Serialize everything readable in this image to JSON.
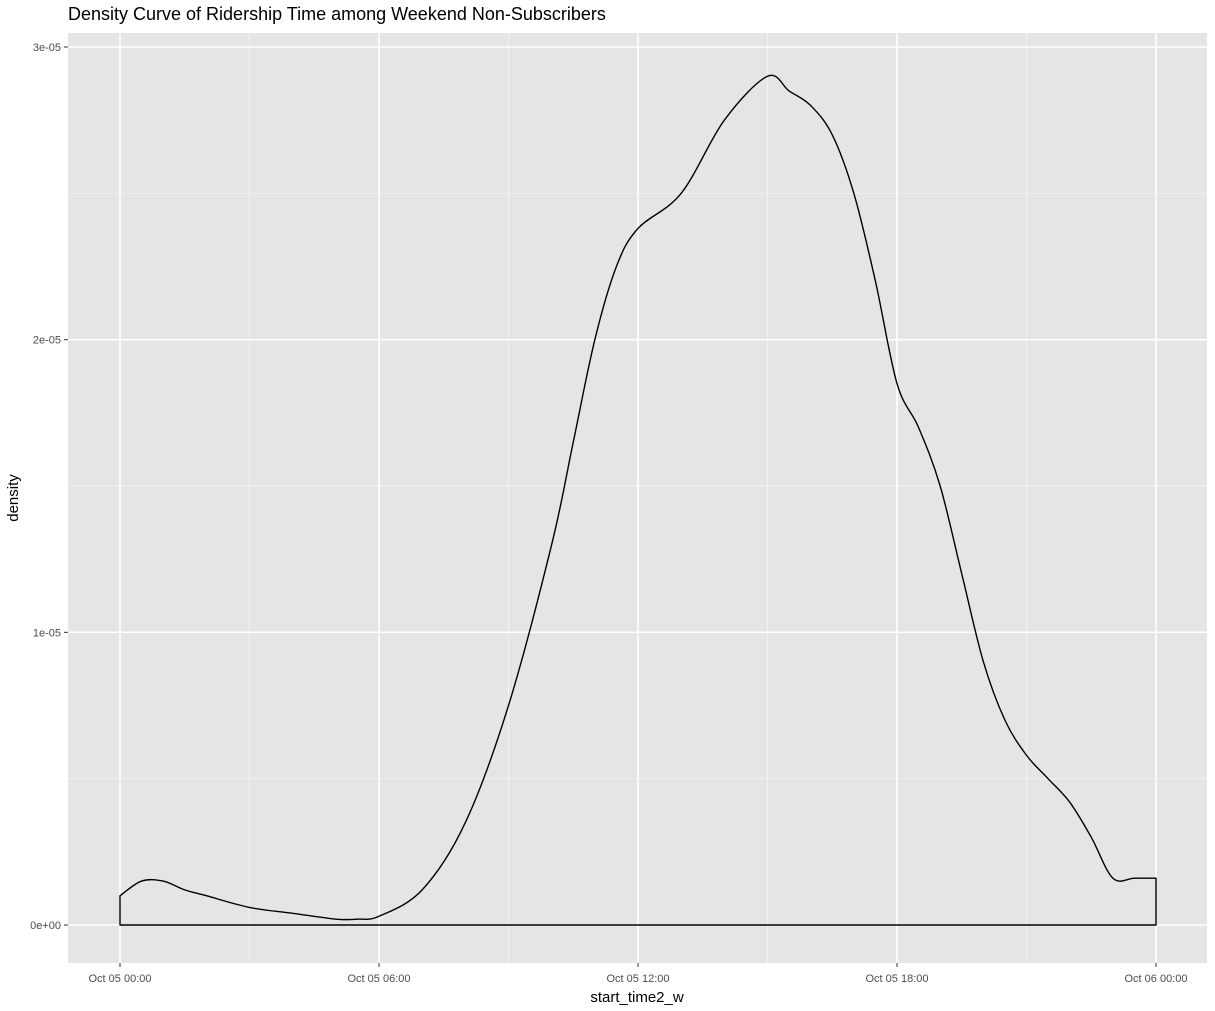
{
  "chart_data": {
    "type": "area",
    "title": "Density Curve of Ridership Time among Weekend Non-Subscribers",
    "xlabel": "start_time2_w",
    "ylabel": "density",
    "x_unit": "datetime",
    "xlim": [
      "Oct 05 00:00",
      "Oct 06 00:00"
    ],
    "ylim": [
      0,
      3e-05
    ],
    "x_ticks": [
      "Oct 05 00:00",
      "Oct 05 06:00",
      "Oct 05 12:00",
      "Oct 05 18:00",
      "Oct 06 00:00"
    ],
    "y_ticks": [
      "0e+00",
      "1e-05",
      "2e-05",
      "3e-05"
    ],
    "grid": true,
    "legend": "none",
    "series": [
      {
        "x": [
          "Oct 05 00:00",
          "Oct 05 00:30",
          "Oct 05 01:00",
          "Oct 05 01:30",
          "Oct 05 02:00",
          "Oct 05 03:00",
          "Oct 05 04:00",
          "Oct 05 05:00",
          "Oct 05 05:30",
          "Oct 05 06:00",
          "Oct 05 07:00",
          "Oct 05 08:00",
          "Oct 05 09:00",
          "Oct 05 10:00",
          "Oct 05 10:30",
          "Oct 05 11:00",
          "Oct 05 11:30",
          "Oct 05 12:00",
          "Oct 05 13:00",
          "Oct 05 14:00",
          "Oct 05 15:00",
          "Oct 05 15:30",
          "Oct 05 16:00",
          "Oct 05 16:30",
          "Oct 05 17:00",
          "Oct 05 17:30",
          "Oct 05 18:00",
          "Oct 05 18:30",
          "Oct 05 19:00",
          "Oct 05 19:30",
          "Oct 05 20:00",
          "Oct 05 20:30",
          "Oct 05 21:00",
          "Oct 05 21:30",
          "Oct 05 22:00",
          "Oct 05 22:30",
          "Oct 05 23:00",
          "Oct 05 23:30",
          "Oct 06 00:00"
        ],
        "y": [
          1e-06,
          1.5e-06,
          1.5e-06,
          1.2e-06,
          1e-06,
          6e-07,
          4e-07,
          2e-07,
          2e-07,
          3e-07,
          1.2e-06,
          3.5e-06,
          7.5e-06,
          1.3e-05,
          1.65e-05,
          2e-05,
          2.25e-05,
          2.38e-05,
          2.5e-05,
          2.75e-05,
          2.9e-05,
          2.85e-05,
          2.8e-05,
          2.7e-05,
          2.5e-05,
          2.2e-05,
          1.85e-05,
          1.7e-05,
          1.5e-05,
          1.2e-05,
          9e-06,
          7e-06,
          5.8e-06,
          5e-06,
          4.2e-06,
          3e-06,
          1.6e-06,
          1.6e-06,
          1.6e-06
        ]
      }
    ]
  }
}
